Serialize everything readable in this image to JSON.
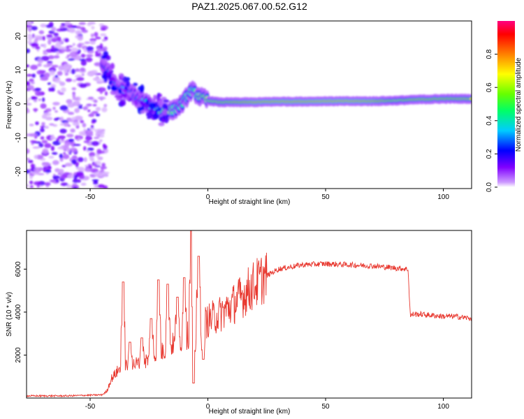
{
  "title": "PAZ1.2025.067.00.52.G12",
  "chart_data": [
    {
      "type": "heatmap",
      "xlabel": "Height of straight line (km)",
      "ylabel": "Frequency (Hz)",
      "xlim": [
        -77,
        112
      ],
      "ylim": [
        -25,
        24.5
      ],
      "xticks": [
        -50,
        0,
        50,
        100
      ],
      "yticks": [
        20,
        10,
        0,
        -10,
        -20
      ],
      "colorbar": {
        "label": "Normalized spectral amplitude",
        "range": [
          0,
          1
        ],
        "ticks": [
          0.0,
          0.2,
          0.4,
          0.6,
          0.8
        ],
        "tick_labels": [
          "0.0",
          "0.2",
          "0.4",
          "0.6",
          "0.8"
        ],
        "colormap": [
          "#ffffff",
          "#8000ff",
          "#0000ff",
          "#00ffff",
          "#00ff00",
          "#ffff00",
          "#ff8000",
          "#ff0000",
          "#ff0080"
        ]
      },
      "noise_region_x": [
        -77,
        -43
      ],
      "ridge": {
        "x": [
          -45,
          -42,
          -39,
          -35,
          -32,
          -29,
          -26,
          -23,
          -20,
          -17,
          -15,
          -13,
          -11,
          -9,
          -7,
          -5,
          -3,
          0,
          5,
          10,
          20,
          30,
          40,
          50,
          60,
          70,
          80,
          90,
          100,
          112
        ],
        "freq": [
          12,
          9,
          5,
          4,
          3,
          1,
          0,
          -1,
          -2,
          -2,
          -2,
          -1,
          0,
          2,
          4,
          3,
          2,
          1,
          0.5,
          0.5,
          0.5,
          0.7,
          0.7,
          0.8,
          0.8,
          0.8,
          1.0,
          1.3,
          1.5,
          1.5
        ],
        "amp": [
          0.25,
          0.3,
          0.3,
          0.35,
          0.3,
          0.35,
          0.4,
          0.5,
          0.55,
          0.7,
          0.55,
          0.45,
          0.45,
          0.5,
          0.5,
          0.55,
          0.6,
          0.7,
          0.75,
          0.8,
          0.9,
          0.92,
          0.92,
          0.93,
          0.93,
          0.9,
          0.7,
          0.8,
          0.8,
          0.75
        ]
      }
    },
    {
      "type": "line",
      "xlabel": "Height of straight line (km)",
      "ylabel": "SNR (10 * v/v)",
      "xlim": [
        -77,
        112
      ],
      "ylim": [
        0,
        7800
      ],
      "xticks": [
        -50,
        0,
        50,
        100
      ],
      "yticks": [
        2000,
        4000,
        6000
      ],
      "color": "#e8382f",
      "series_envelope": {
        "x": [
          -77,
          -60,
          -45,
          -43,
          -41,
          -38,
          -35,
          -30,
          -25,
          -20,
          -15,
          -10,
          -5,
          0,
          5,
          10,
          15,
          20,
          25,
          30,
          40,
          50,
          60,
          70,
          80,
          85,
          86,
          87,
          90,
          95,
          100,
          105,
          112
        ],
        "base": [
          100,
          100,
          150,
          300,
          900,
          1300,
          1500,
          1600,
          1800,
          2100,
          2500,
          2800,
          3200,
          3600,
          3900,
          4300,
          4800,
          5300,
          5700,
          6000,
          6200,
          6250,
          6200,
          6150,
          6050,
          6000,
          3800,
          3900,
          3900,
          3850,
          3800,
          3800,
          3700
        ]
      },
      "spikes": [
        {
          "x": -36,
          "y": 5400
        },
        {
          "x": -33,
          "y": 2600
        },
        {
          "x": -28,
          "y": 2800
        },
        {
          "x": -24,
          "y": 3700
        },
        {
          "x": -21,
          "y": 5500
        },
        {
          "x": -17,
          "y": 5300
        },
        {
          "x": -13,
          "y": 4700
        },
        {
          "x": -10,
          "y": 5600
        },
        {
          "x": -7,
          "y": 7800
        },
        {
          "x": -6,
          "y": 700
        },
        {
          "x": -4,
          "y": 6600
        },
        {
          "x": -2,
          "y": 1800
        }
      ]
    }
  ]
}
